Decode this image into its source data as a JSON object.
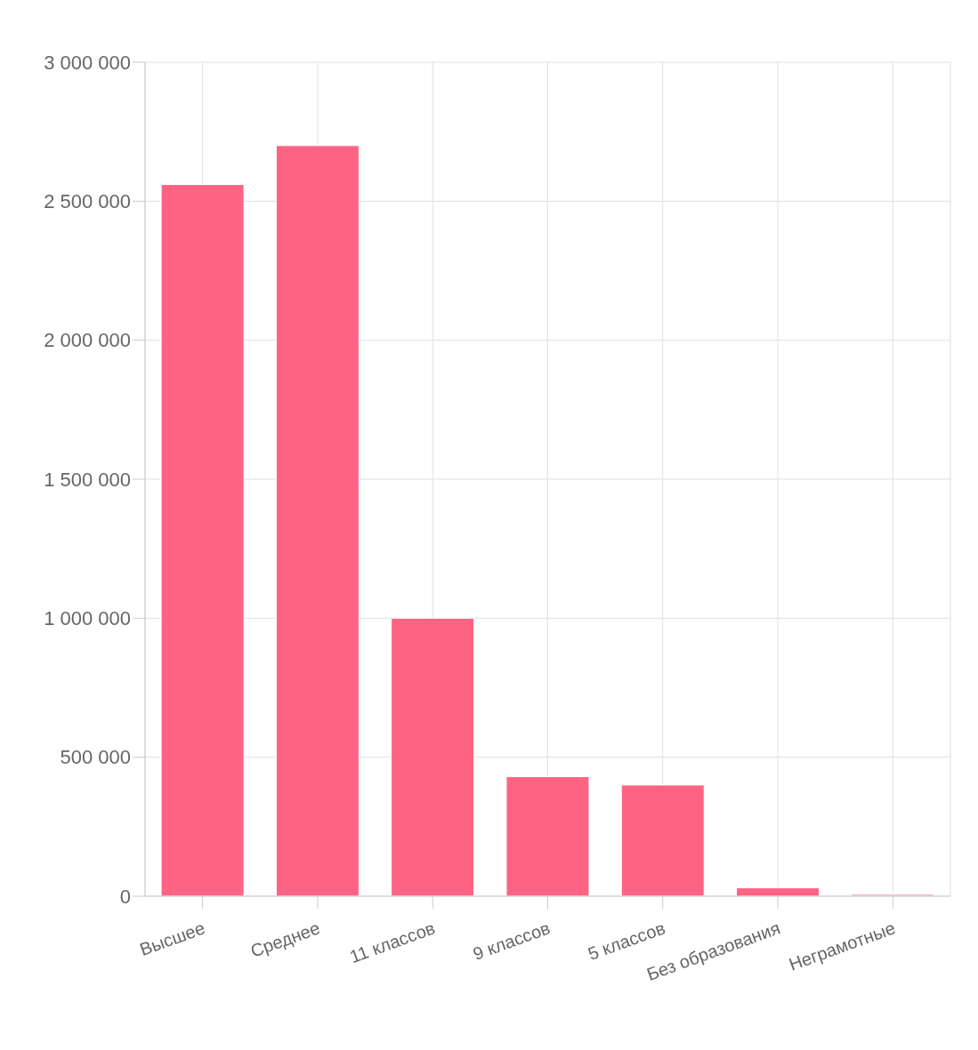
{
  "chart_data": {
    "type": "bar",
    "categories": [
      "Высшее",
      "Среднее",
      "11 классов",
      "9 классов",
      "5 классов",
      "Без образования",
      "Неграмотные"
    ],
    "values": [
      2560000,
      2700000,
      1000000,
      430000,
      400000,
      30000,
      8000
    ],
    "colors": [
      "#ff6384",
      "#ff6384",
      "#ff6384",
      "#ff6384",
      "#ff6384",
      "#ff6384",
      "#f4b6c4"
    ],
    "ylim": [
      0,
      3000000
    ],
    "yticks": [
      {
        "value": 0,
        "label": "0"
      },
      {
        "value": 500000,
        "label": "500 000"
      },
      {
        "value": 1000000,
        "label": "1 000 000"
      },
      {
        "value": 1500000,
        "label": "1 500 000"
      },
      {
        "value": 2000000,
        "label": "2 000 000"
      },
      {
        "value": 2500000,
        "label": "2 500 000"
      },
      {
        "value": 3000000,
        "label": "3 000 000"
      }
    ],
    "grid": true
  }
}
